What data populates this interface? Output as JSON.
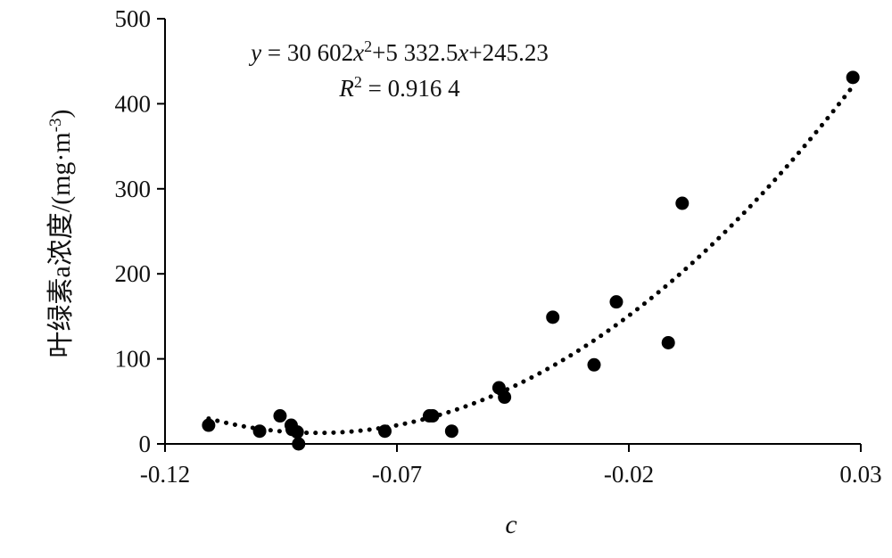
{
  "chart_data": {
    "type": "scatter",
    "title": "",
    "xlabel": "c",
    "ylabel": "叶绿素a浓度/(mg·m",
    "ylabel_sup": "-3",
    "ylabel_end": ")",
    "xlim": [
      -0.12,
      0.03
    ],
    "ylim": [
      0,
      500
    ],
    "xticks": [
      -0.12,
      -0.07,
      -0.02,
      0.03
    ],
    "xtick_labels": [
      "-0.12",
      "-0.07",
      "-0.02",
      "0.03"
    ],
    "yticks": [
      0,
      100,
      200,
      300,
      400,
      500
    ],
    "ytick_labels": [
      "0",
      "100",
      "200",
      "300",
      "400",
      "500"
    ],
    "grid": false,
    "legend": "none",
    "points": [
      {
        "x": -0.1106,
        "y": 22
      },
      {
        "x": -0.0996,
        "y": 15
      },
      {
        "x": -0.0952,
        "y": 33
      },
      {
        "x": -0.0928,
        "y": 22
      },
      {
        "x": -0.0926,
        "y": 17
      },
      {
        "x": -0.0915,
        "y": 14
      },
      {
        "x": -0.0912,
        "y": 0
      },
      {
        "x": -0.0726,
        "y": 15
      },
      {
        "x": -0.063,
        "y": 33
      },
      {
        "x": -0.0623,
        "y": 33
      },
      {
        "x": -0.0582,
        "y": 15
      },
      {
        "x": -0.048,
        "y": 66
      },
      {
        "x": -0.0468,
        "y": 55
      },
      {
        "x": -0.0364,
        "y": 149
      },
      {
        "x": -0.0275,
        "y": 93
      },
      {
        "x": -0.0227,
        "y": 167
      },
      {
        "x": -0.0115,
        "y": 119
      },
      {
        "x": -0.0085,
        "y": 283
      },
      {
        "x": 0.0283,
        "y": 431
      }
    ],
    "trendline": {
      "type": "polynomial",
      "order": 2,
      "coefficients": {
        "a": 30602,
        "b": 5332.5,
        "c": 245.23
      },
      "x_range": [
        -0.1106,
        0.0283
      ],
      "style": "dotted"
    },
    "annotations": {
      "equation_y": "y",
      "equation_eq": " = 30 602",
      "equation_x1": "x",
      "equation_sup": "2",
      "equation_mid": "+5 332.5",
      "equation_x2": "x",
      "equation_end": "+245.23",
      "r2_label": "R",
      "r2_sup": "2",
      "r2_value": " = 0.916 4"
    }
  },
  "colors": {
    "marker": "#000000",
    "axis": "#000000",
    "trendline": "#000000"
  }
}
